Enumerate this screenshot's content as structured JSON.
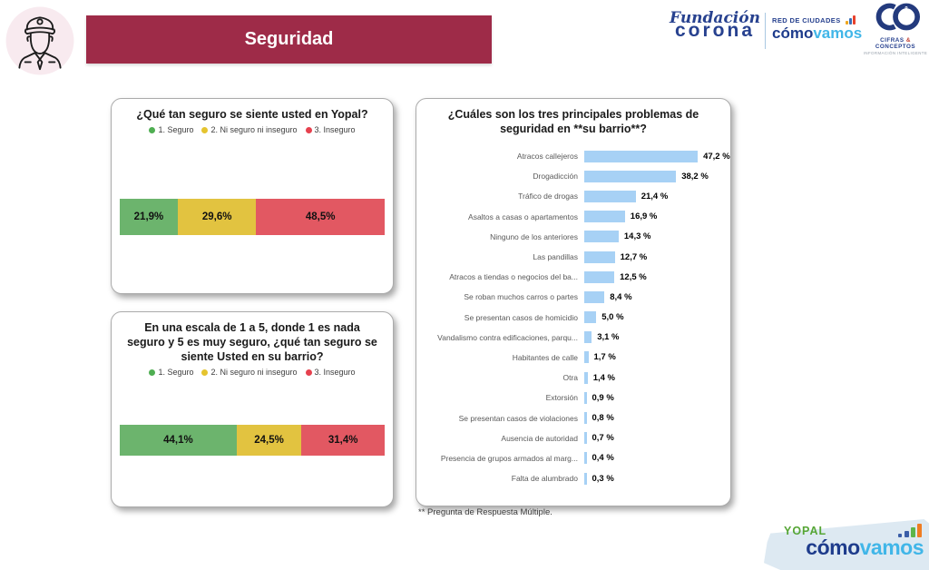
{
  "header": {
    "title": "Seguridad"
  },
  "logos": {
    "fundacion_corona": {
      "line1": "Fundación",
      "line2": "corona"
    },
    "red_ciudades": {
      "top": "RED DE CIUDADES",
      "brand_dark": "cómo",
      "brand_light": "vamos"
    },
    "cifras_conceptos": {
      "name_left": "CIFRAS",
      "amp": "&",
      "name_right": "CONCEPTOS",
      "tagline": "INFORMACIÓN INTELIGENTE"
    },
    "footer": {
      "city": "YOPAL",
      "brand_dark": "cómo",
      "brand_light": "vamos"
    }
  },
  "footnote": "** Pregunta de Respuesta Múltiple.",
  "colors": {
    "banner": "#9e2b48",
    "bar_blue": "#a7d1f5",
    "navy": "#1e3c8c",
    "light_blue": "#41b6e8"
  },
  "chart_data": [
    {
      "type": "bar",
      "subtype": "stacked-horizontal-100pct",
      "title": "¿Qué tan seguro se siente usted en Yopal?",
      "legend": [
        {
          "label": "1. Seguro",
          "color": "#4fae52"
        },
        {
          "label": "2. Ni seguro ni inseguro",
          "color": "#e5c42f"
        },
        {
          "label": "3. Inseguro",
          "color": "#e6414e"
        }
      ],
      "segments": [
        {
          "name": "1. Seguro",
          "value": 21.9,
          "label": "21,9%",
          "color": "#6cb46d"
        },
        {
          "name": "2. Ni seguro ni inseguro",
          "value": 29.6,
          "label": "29,6%",
          "color": "#e2c340"
        },
        {
          "name": "3. Inseguro",
          "value": 48.5,
          "label": "48,5%",
          "color": "#e25862"
        }
      ]
    },
    {
      "type": "bar",
      "subtype": "stacked-horizontal-100pct",
      "title": "En una escala de 1 a 5, donde 1 es nada seguro y 5 es muy seguro, ¿qué tan seguro se siente Usted en su barrio?",
      "legend": [
        {
          "label": "1. Seguro",
          "color": "#4fae52"
        },
        {
          "label": "2. Ni seguro ni inseguro",
          "color": "#e5c42f"
        },
        {
          "label": "3. Inseguro",
          "color": "#e6414e"
        }
      ],
      "segments": [
        {
          "name": "1. Seguro",
          "value": 44.1,
          "label": "44,1%",
          "color": "#6cb46d"
        },
        {
          "name": "2. Ni seguro ni inseguro",
          "value": 24.5,
          "label": "24,5%",
          "color": "#e2c340"
        },
        {
          "name": "3. Inseguro",
          "value": 31.4,
          "label": "31,4%",
          "color": "#e25862"
        }
      ]
    },
    {
      "type": "bar",
      "subtype": "horizontal",
      "title": "¿Cuáles son los tres principales problemas de seguridad en **su barrio**?",
      "bar_color": "#a7d1f5",
      "xlim": [
        0,
        50
      ],
      "categories": [
        "Atracos callejeros",
        "Drogadicción",
        "Tráfico de drogas",
        "Asaltos a casas o apartamentos",
        "Ninguno de los anteriores",
        "Las pandillas",
        "Atracos a tiendas o negocios del ba...",
        "Se roban muchos carros o partes",
        "Se presentan casos de homicidio",
        "Vandalismo contra edificaciones, parqu...",
        "Habitantes de calle",
        "Otra",
        "Extorsión",
        "Se presentan casos de violaciones",
        "Ausencia de autoridad",
        "Presencia de grupos armados al marg...",
        "Falta de alumbrado"
      ],
      "values": [
        47.2,
        38.2,
        21.4,
        16.9,
        14.3,
        12.7,
        12.5,
        8.4,
        5.0,
        3.1,
        1.7,
        1.4,
        0.9,
        0.8,
        0.7,
        0.4,
        0.3
      ],
      "value_labels": [
        "47,2 %",
        "38,2 %",
        "21,4 %",
        "16,9 %",
        "14,3 %",
        "12,7 %",
        "12,5 %",
        "8,4 %",
        "5,0 %",
        "3,1 %",
        "1,7 %",
        "1,4 %",
        "0,9 %",
        "0,8 %",
        "0,7 %",
        "0,4 %",
        "0,3 %"
      ]
    }
  ]
}
